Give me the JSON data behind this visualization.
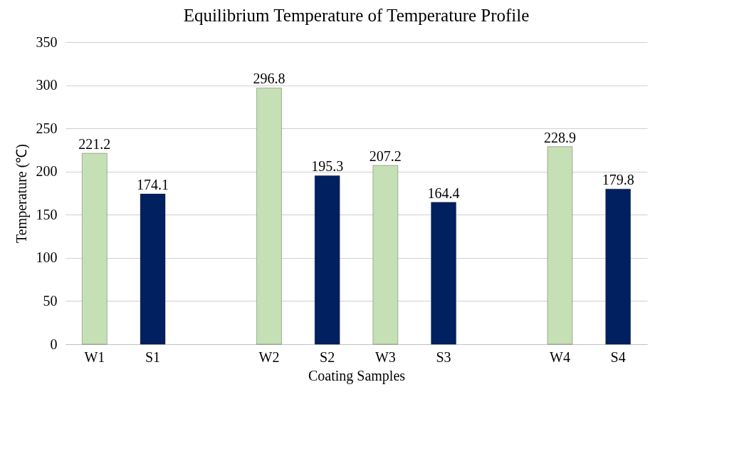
{
  "chart_data": {
    "type": "bar",
    "title": "Equilibrium  Temperature of Temperature Profile",
    "xlabel": "Coating Samples",
    "ylabel": "Temperature (℃)",
    "categories": [
      "W1",
      "S1",
      null,
      "W2",
      "S2",
      "W3",
      "S3",
      null,
      "W4",
      "S4"
    ],
    "values": [
      221.2,
      174.1,
      null,
      296.8,
      195.3,
      207.2,
      164.4,
      null,
      228.9,
      179.8
    ],
    "colors": [
      "#c5e0b4",
      "#002060",
      null,
      "#c5e0b4",
      "#002060",
      "#c5e0b4",
      "#002060",
      null,
      "#c5e0b4",
      "#002060"
    ],
    "ylim": [
      0,
      350
    ],
    "yticks": [
      0,
      50,
      100,
      150,
      200,
      250,
      300,
      350
    ],
    "grid": "y",
    "data_labels": true
  }
}
